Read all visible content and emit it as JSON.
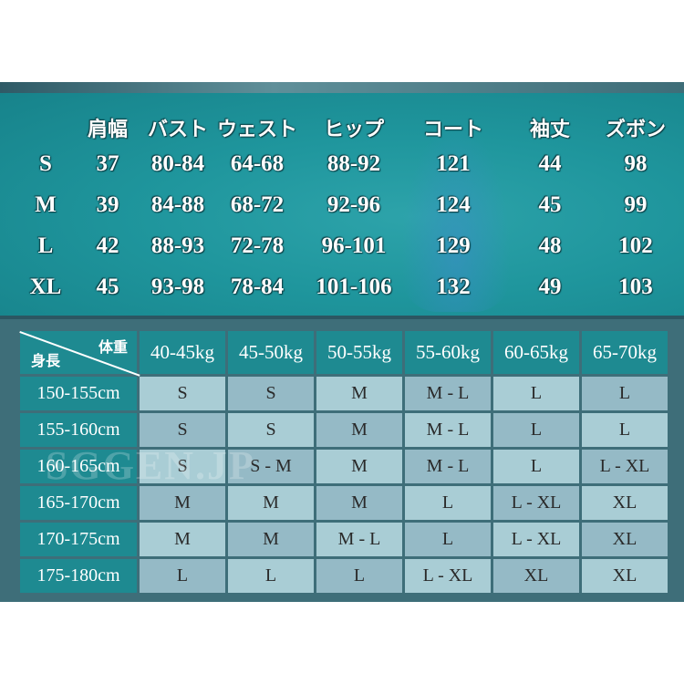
{
  "measurements": {
    "headers": [
      "肩幅",
      "バスト",
      "ウェスト",
      "ヒップ",
      "コート",
      "袖丈",
      "ズボン"
    ],
    "rows": [
      {
        "size": "S",
        "values": [
          "37",
          "80-84",
          "64-68",
          "88-92",
          "121",
          "44",
          "98"
        ]
      },
      {
        "size": "M",
        "values": [
          "39",
          "84-88",
          "68-72",
          "92-96",
          "124",
          "45",
          "99"
        ]
      },
      {
        "size": "L",
        "values": [
          "42",
          "88-93",
          "72-78",
          "96-101",
          "129",
          "48",
          "102"
        ]
      },
      {
        "size": "XL",
        "values": [
          "45",
          "93-98",
          "78-84",
          "101-106",
          "132",
          "49",
          "103"
        ]
      }
    ]
  },
  "size_guide": {
    "corner_weight": "体重",
    "corner_height": "身長",
    "weights": [
      "40-45kg",
      "45-50kg",
      "50-55kg",
      "55-60kg",
      "60-65kg",
      "65-70kg"
    ],
    "rows": [
      {
        "height": "150-155cm",
        "sizes": [
          "S",
          "S",
          "M",
          "M - L",
          "L",
          "L"
        ]
      },
      {
        "height": "155-160cm",
        "sizes": [
          "S",
          "S",
          "M",
          "M - L",
          "L",
          "L"
        ]
      },
      {
        "height": "160-165cm",
        "sizes": [
          "S",
          "S - M",
          "M",
          "M - L",
          "L",
          "L - XL"
        ]
      },
      {
        "height": "165-170cm",
        "sizes": [
          "M",
          "M",
          "M",
          "L",
          "L - XL",
          "XL"
        ]
      },
      {
        "height": "170-175cm",
        "sizes": [
          "M",
          "M",
          "M - L",
          "L",
          "L - XL",
          "XL"
        ]
      },
      {
        "height": "175-180cm",
        "sizes": [
          "L",
          "L",
          "L",
          "L - XL",
          "XL",
          "XL"
        ]
      }
    ]
  },
  "watermark": "SGGEN.JP",
  "colors": {
    "panel": "#1f969d",
    "header_cell": "#1e8a91",
    "background": "#3e6e79"
  }
}
